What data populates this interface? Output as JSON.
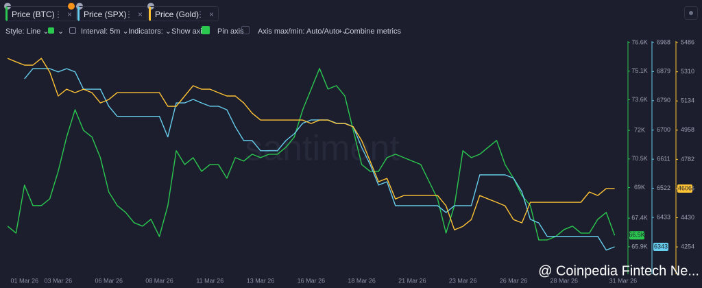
{
  "ui": {
    "tabs": [
      {
        "label": "Price (BTC)"
      },
      {
        "label": "Price (SPX)"
      },
      {
        "label": "Price (Gold)"
      }
    ],
    "toolbar": {
      "style": "Style: Line",
      "interval": "Interval: 5m",
      "indicators": "Indicators:",
      "show_axis": "Show axis",
      "pin_axis": "Pin axis",
      "axis_range": "Axis max/min: Auto/Auto",
      "combine": "Combine metrics"
    },
    "watermark": "santiment",
    "overlay": "@ Coinpedia Fintech Ne..."
  },
  "chart_data": {
    "type": "line",
    "categories": [
      null,
      null,
      "01 Mar 26",
      null,
      null,
      null,
      "03 Mar 26",
      null,
      null,
      null,
      null,
      null,
      "06 Mar 26",
      null,
      null,
      null,
      null,
      null,
      "08 Mar 26",
      null,
      null,
      null,
      null,
      null,
      "11 Mar 26",
      null,
      null,
      null,
      null,
      null,
      "13 Mar 26",
      null,
      null,
      null,
      null,
      null,
      "16 Mar 26",
      null,
      null,
      null,
      null,
      null,
      "18 Mar 26",
      null,
      null,
      null,
      null,
      null,
      "21 Mar 26",
      null,
      null,
      null,
      null,
      null,
      "23 Mar 26",
      null,
      null,
      null,
      null,
      null,
      "26 Mar 26",
      null,
      null,
      null,
      null,
      null,
      "28 Mar 26",
      null,
      null,
      null,
      null,
      null,
      null,
      "31 Mar 26"
    ],
    "series": [
      {
        "name": "Price (BTC)",
        "color": "#2bc84f",
        "current_label": "66.5K",
        "ylim": [
          64460,
          77030
        ],
        "yticks": [
          {
            "value": 76600,
            "label": "76.6K"
          },
          {
            "value": 75100,
            "label": "75.1K"
          },
          {
            "value": 73600,
            "label": "73.6K"
          },
          {
            "value": 72000,
            "label": "72K"
          },
          {
            "value": 70500,
            "label": "70.5K"
          },
          {
            "value": 69000,
            "label": "69K"
          },
          {
            "value": 67400,
            "label": "67.4K"
          },
          {
            "value": 65900,
            "label": "65.9K"
          }
        ],
        "values": [
          66980,
          66620,
          69130,
          68060,
          68060,
          68410,
          69850,
          71650,
          73080,
          72000,
          71650,
          70570,
          68770,
          68060,
          67700,
          67160,
          66980,
          67340,
          66440,
          68060,
          70930,
          70210,
          70570,
          69850,
          70210,
          70210,
          69490,
          70570,
          70390,
          70750,
          70570,
          70750,
          70750,
          71110,
          71650,
          73080,
          74160,
          75240,
          74160,
          74340,
          73800,
          72000,
          70210,
          69850,
          69850,
          70570,
          70750,
          70570,
          70390,
          70210,
          69310,
          68410,
          66620,
          68060,
          70930,
          70570,
          70750,
          71110,
          71470,
          70210,
          69490,
          68590,
          68060,
          66260,
          66260,
          66440,
          66800,
          66980,
          66620,
          66620,
          67340,
          67700,
          66500,
          null
        ]
      },
      {
        "name": "Price (SPX)",
        "color": "#66cdec",
        "current_label": "6343",
        "ylim": [
          6259,
          6993
        ],
        "yticks": [
          6968,
          6879,
          6790,
          6700,
          6611,
          6522,
          6433
        ],
        "values": [
          null,
          null,
          6857,
          6888,
          6888,
          6888,
          6878,
          6888,
          6878,
          6825,
          6825,
          6825,
          6773,
          6742,
          6742,
          6742,
          6742,
          6742,
          6742,
          6679,
          6783,
          6783,
          6794,
          6783,
          6773,
          6773,
          6762,
          6710,
          6668,
          6668,
          6637,
          6637,
          6637,
          6668,
          6689,
          6721,
          6731,
          6731,
          6731,
          6721,
          6721,
          6710,
          6647,
          6595,
          6532,
          6542,
          6469,
          6469,
          6469,
          6469,
          6469,
          6469,
          6448,
          6469,
          6469,
          6469,
          6563,
          6563,
          6563,
          6563,
          6553,
          6511,
          6427,
          6416,
          6375,
          6375,
          6375,
          6375,
          6375,
          6375,
          6375,
          6333,
          6343,
          null
        ]
      },
      {
        "name": "Price (Gold)",
        "color": "#ffc435",
        "current_label": "4606",
        "ylim": [
          4089,
          5536
        ],
        "yticks": [
          5486,
          5310,
          5134,
          4958,
          4782,
          4606,
          4430,
          4254
        ],
        "values": [
          5391,
          5370,
          5350,
          5350,
          5391,
          5308,
          5164,
          5205,
          5184,
          5205,
          5184,
          5122,
          5143,
          5184,
          5184,
          5184,
          5184,
          5184,
          5184,
          5102,
          5102,
          5164,
          5226,
          5205,
          5205,
          5184,
          5164,
          5164,
          5122,
          5060,
          5019,
          5019,
          5019,
          5019,
          5019,
          5019,
          4998,
          5019,
          5019,
          4998,
          4998,
          4978,
          4895,
          4771,
          4647,
          4667,
          4543,
          4564,
          4564,
          4564,
          4564,
          4564,
          4502,
          4357,
          4378,
          4419,
          4564,
          4543,
          4523,
          4502,
          4419,
          4399,
          4523,
          4523,
          4523,
          4523,
          4523,
          4523,
          4523,
          4585,
          4564,
          4606,
          4606,
          null
        ]
      }
    ]
  }
}
